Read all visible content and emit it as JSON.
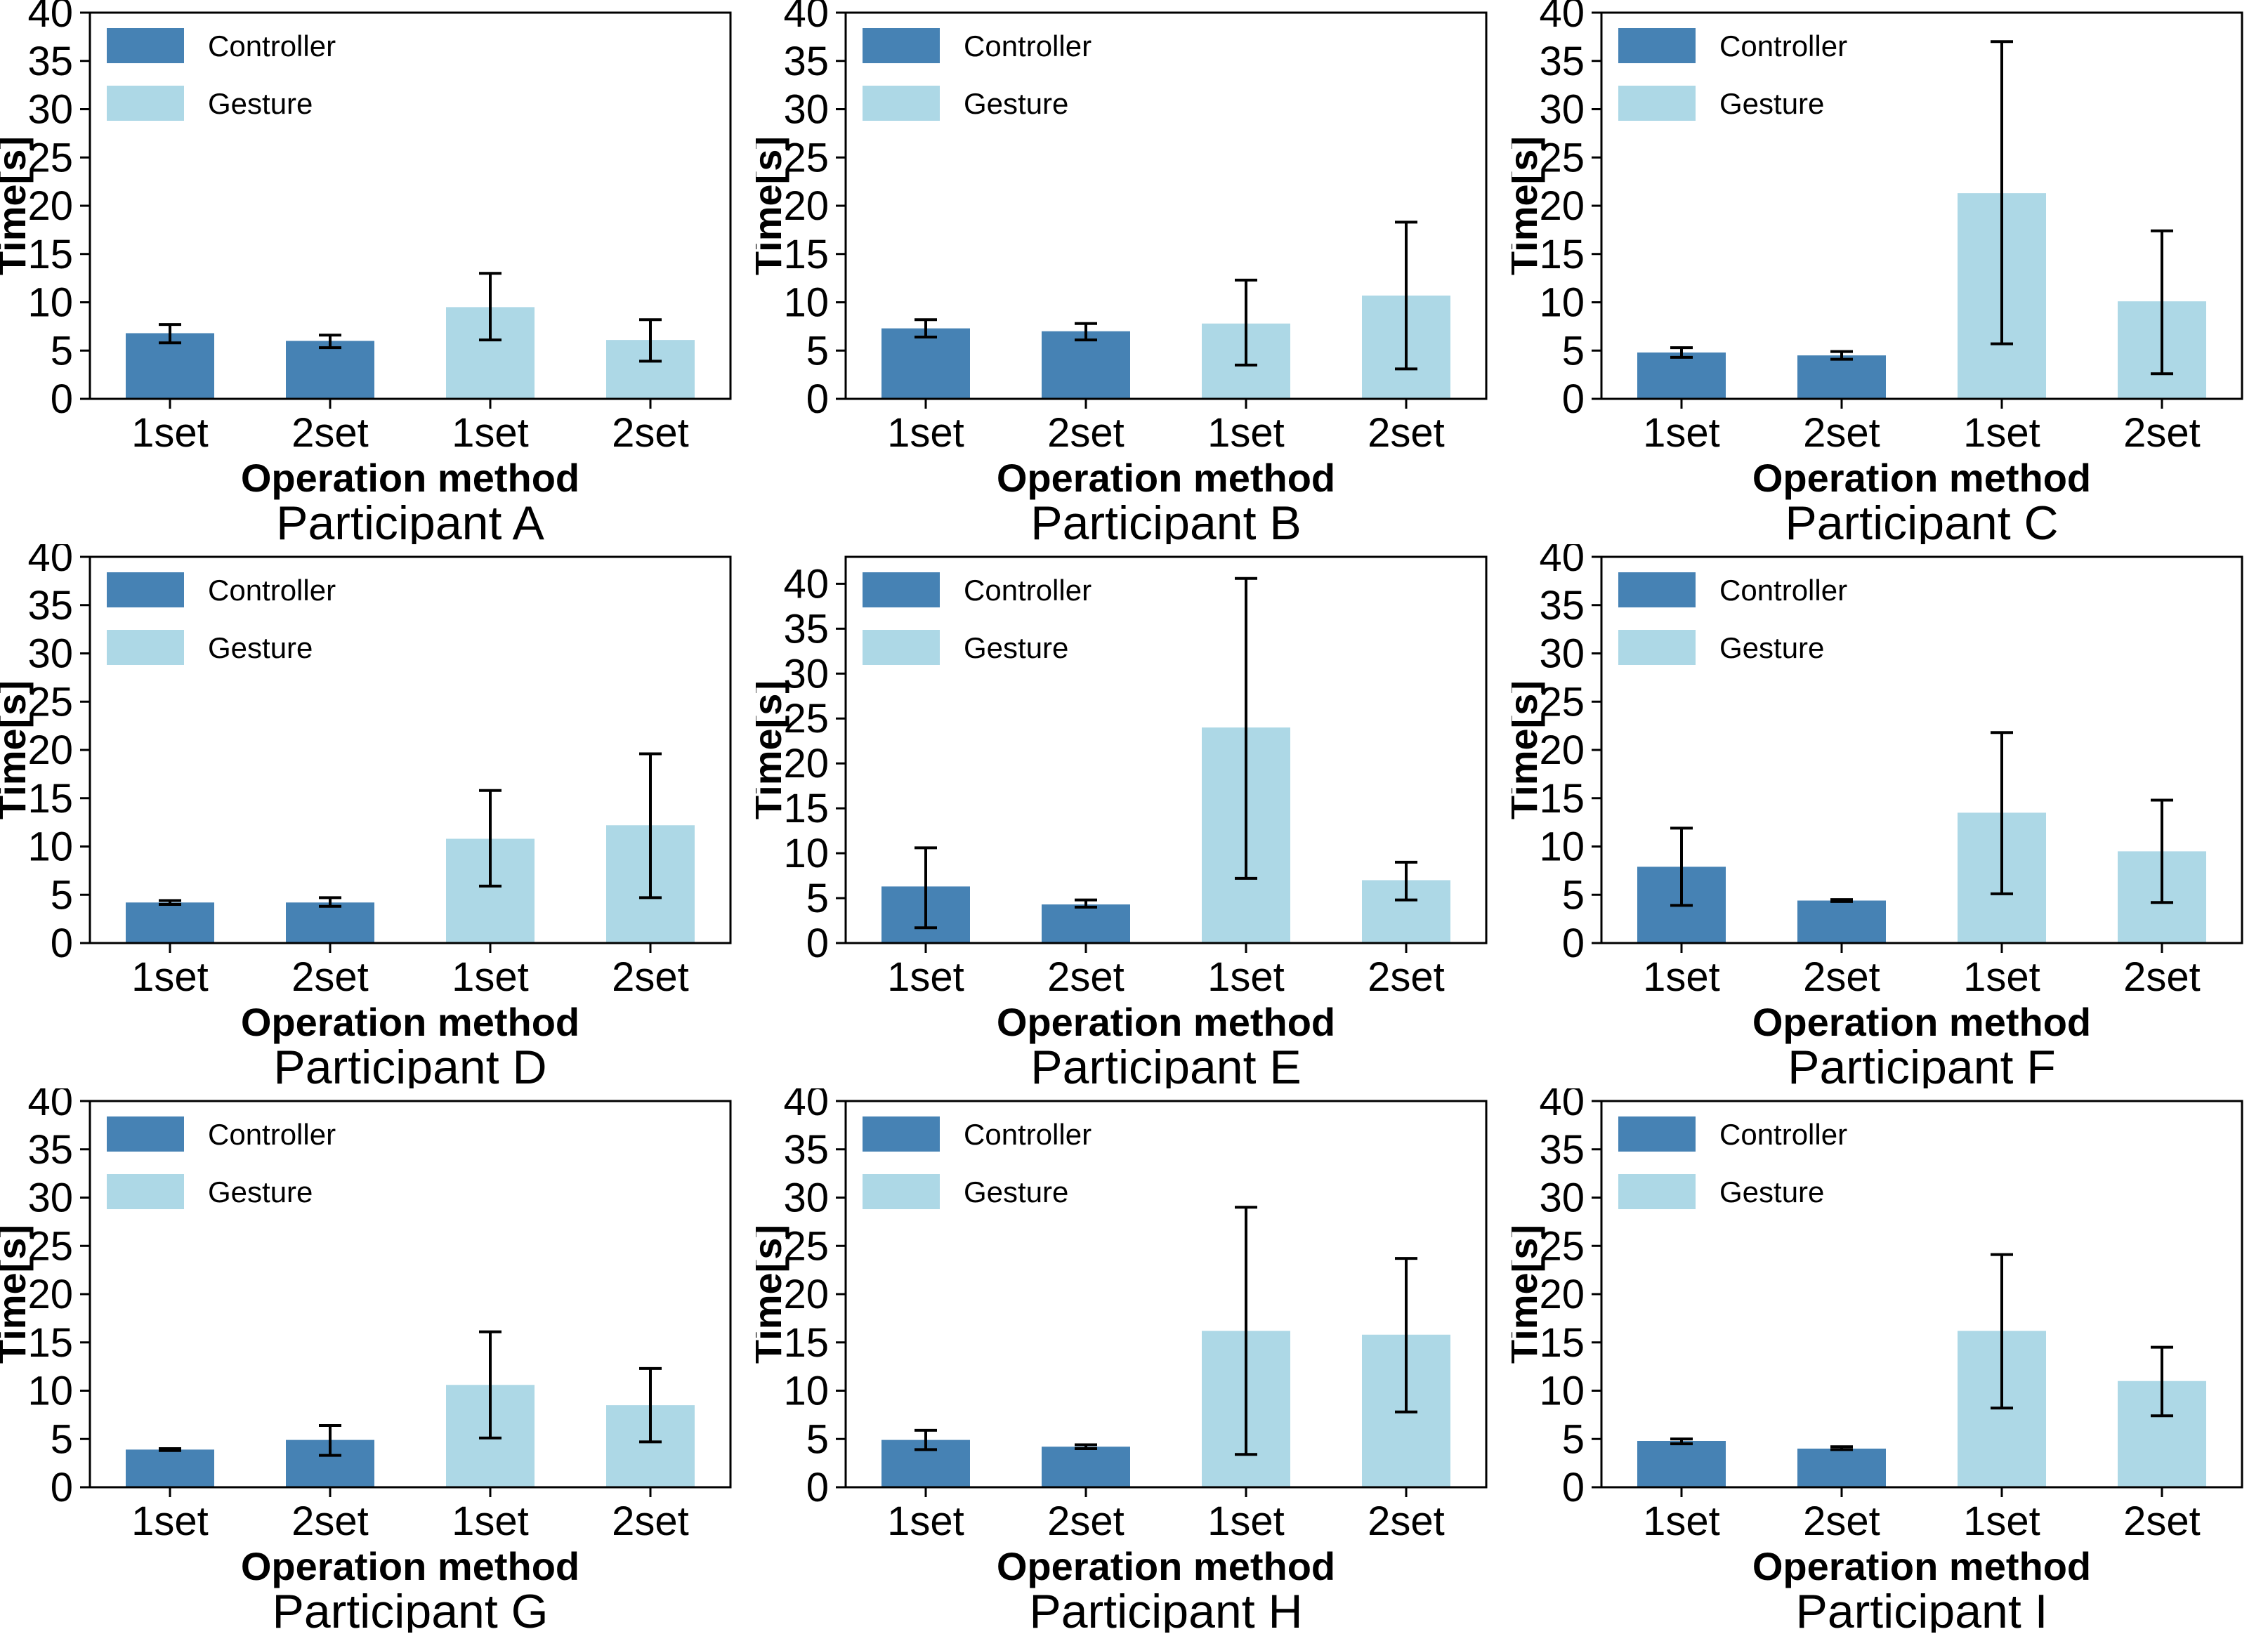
{
  "figure": {
    "background": "#ffffff",
    "rows": 3,
    "cols": 3
  },
  "chart_data": [
    {
      "type": "bar",
      "title": "Participant A",
      "xlabel": "Operation method",
      "ylabel": "Time[s]",
      "ylim": [
        0,
        40
      ],
      "yticks": [
        0,
        5,
        10,
        15,
        20,
        25,
        30,
        35,
        40
      ],
      "categories": [
        "1set",
        "2set",
        "1set",
        "2set"
      ],
      "legend": [
        {
          "label": "Controller",
          "color": "#4682B4"
        },
        {
          "label": "Gesture",
          "color": "#ADD8E6"
        }
      ],
      "bars": [
        {
          "series": "Controller",
          "label": "1set",
          "value": 6.8,
          "err_lo": 5.8,
          "err_hi": 7.7
        },
        {
          "series": "Controller",
          "label": "2set",
          "value": 6.0,
          "err_lo": 5.3,
          "err_hi": 6.6
        },
        {
          "series": "Gesture",
          "label": "1set",
          "value": 9.5,
          "err_lo": 6.1,
          "err_hi": 13.0
        },
        {
          "series": "Gesture",
          "label": "2set",
          "value": 6.1,
          "err_lo": 3.9,
          "err_hi": 8.2
        }
      ]
    },
    {
      "type": "bar",
      "title": "Participant B",
      "xlabel": "Operation method",
      "ylabel": "Time[s]",
      "ylim": [
        0,
        40
      ],
      "yticks": [
        0,
        5,
        10,
        15,
        20,
        25,
        30,
        35,
        40
      ],
      "categories": [
        "1set",
        "2set",
        "1set",
        "2set"
      ],
      "legend": [
        {
          "label": "Controller",
          "color": "#4682B4"
        },
        {
          "label": "Gesture",
          "color": "#ADD8E6"
        }
      ],
      "bars": [
        {
          "series": "Controller",
          "label": "1set",
          "value": 7.3,
          "err_lo": 6.4,
          "err_hi": 8.2
        },
        {
          "series": "Controller",
          "label": "2set",
          "value": 7.0,
          "err_lo": 6.1,
          "err_hi": 7.8
        },
        {
          "series": "Gesture",
          "label": "1set",
          "value": 7.8,
          "err_lo": 3.5,
          "err_hi": 12.3
        },
        {
          "series": "Gesture",
          "label": "2set",
          "value": 10.7,
          "err_lo": 3.1,
          "err_hi": 18.3
        }
      ]
    },
    {
      "type": "bar",
      "title": "Participant C",
      "xlabel": "Operation method",
      "ylabel": "Time[s]",
      "ylim": [
        0,
        40
      ],
      "yticks": [
        0,
        5,
        10,
        15,
        20,
        25,
        30,
        35,
        40
      ],
      "categories": [
        "1set",
        "2set",
        "1set",
        "2set"
      ],
      "legend": [
        {
          "label": "Controller",
          "color": "#4682B4"
        },
        {
          "label": "Gesture",
          "color": "#ADD8E6"
        }
      ],
      "bars": [
        {
          "series": "Controller",
          "label": "1set",
          "value": 4.8,
          "err_lo": 4.3,
          "err_hi": 5.3
        },
        {
          "series": "Controller",
          "label": "2set",
          "value": 4.5,
          "err_lo": 4.1,
          "err_hi": 4.9
        },
        {
          "series": "Gesture",
          "label": "1set",
          "value": 21.3,
          "err_lo": 5.7,
          "err_hi": 37.0
        },
        {
          "series": "Gesture",
          "label": "2set",
          "value": 10.1,
          "err_lo": 2.6,
          "err_hi": 17.4
        }
      ]
    },
    {
      "type": "bar",
      "title": "Participant D",
      "xlabel": "Operation method",
      "ylabel": "Time[s]",
      "ylim": [
        0,
        40
      ],
      "yticks": [
        0,
        5,
        10,
        15,
        20,
        25,
        30,
        35,
        40
      ],
      "categories": [
        "1set",
        "2set",
        "1set",
        "2set"
      ],
      "legend": [
        {
          "label": "Controller",
          "color": "#4682B4"
        },
        {
          "label": "Gesture",
          "color": "#ADD8E6"
        }
      ],
      "bars": [
        {
          "series": "Controller",
          "label": "1set",
          "value": 4.2,
          "err_lo": 4.0,
          "err_hi": 4.4
        },
        {
          "series": "Controller",
          "label": "2set",
          "value": 4.2,
          "err_lo": 3.8,
          "err_hi": 4.7
        },
        {
          "series": "Gesture",
          "label": "1set",
          "value": 10.8,
          "err_lo": 5.9,
          "err_hi": 15.8
        },
        {
          "series": "Gesture",
          "label": "2set",
          "value": 12.2,
          "err_lo": 4.7,
          "err_hi": 19.6
        }
      ]
    },
    {
      "type": "bar",
      "title": "Participant E",
      "xlabel": "Operation method",
      "ylabel": "Time[s]",
      "ylim": [
        0,
        43
      ],
      "yticks": [
        0,
        5,
        10,
        15,
        20,
        25,
        30,
        35,
        40
      ],
      "categories": [
        "1set",
        "2set",
        "1set",
        "2set"
      ],
      "legend": [
        {
          "label": "Controller",
          "color": "#4682B4"
        },
        {
          "label": "Gesture",
          "color": "#ADD8E6"
        }
      ],
      "bars": [
        {
          "series": "Controller",
          "label": "1set",
          "value": 6.3,
          "err_lo": 1.7,
          "err_hi": 10.6
        },
        {
          "series": "Controller",
          "label": "2set",
          "value": 4.3,
          "err_lo": 4.0,
          "err_hi": 4.8
        },
        {
          "series": "Gesture",
          "label": "1set",
          "value": 24.0,
          "err_lo": 7.2,
          "err_hi": 40.6
        },
        {
          "series": "Gesture",
          "label": "2set",
          "value": 7.0,
          "err_lo": 4.8,
          "err_hi": 9.0
        }
      ]
    },
    {
      "type": "bar",
      "title": "Participant F",
      "xlabel": "Operation method",
      "ylabel": "Time[s]",
      "ylim": [
        0,
        40
      ],
      "yticks": [
        0,
        5,
        10,
        15,
        20,
        25,
        30,
        35,
        40
      ],
      "categories": [
        "1set",
        "2set",
        "1set",
        "2set"
      ],
      "legend": [
        {
          "label": "Controller",
          "color": "#4682B4"
        },
        {
          "label": "Gesture",
          "color": "#ADD8E6"
        }
      ],
      "bars": [
        {
          "series": "Controller",
          "label": "1set",
          "value": 7.9,
          "err_lo": 3.9,
          "err_hi": 11.9
        },
        {
          "series": "Controller",
          "label": "2set",
          "value": 4.4,
          "err_lo": 4.3,
          "err_hi": 4.5
        },
        {
          "series": "Gesture",
          "label": "1set",
          "value": 13.5,
          "err_lo": 5.1,
          "err_hi": 21.8
        },
        {
          "series": "Gesture",
          "label": "2set",
          "value": 9.5,
          "err_lo": 4.2,
          "err_hi": 14.8
        }
      ]
    },
    {
      "type": "bar",
      "title": "Participant G",
      "xlabel": "Operation method",
      "ylabel": "Time[s]",
      "ylim": [
        0,
        40
      ],
      "yticks": [
        0,
        5,
        10,
        15,
        20,
        25,
        30,
        35,
        40
      ],
      "categories": [
        "1set",
        "2set",
        "1set",
        "2set"
      ],
      "legend": [
        {
          "label": "Controller",
          "color": "#4682B4"
        },
        {
          "label": "Gesture",
          "color": "#ADD8E6"
        }
      ],
      "bars": [
        {
          "series": "Controller",
          "label": "1set",
          "value": 3.9,
          "err_lo": 3.8,
          "err_hi": 4.0
        },
        {
          "series": "Controller",
          "label": "2set",
          "value": 4.9,
          "err_lo": 3.3,
          "err_hi": 6.4
        },
        {
          "series": "Gesture",
          "label": "1set",
          "value": 10.6,
          "err_lo": 5.1,
          "err_hi": 16.1
        },
        {
          "series": "Gesture",
          "label": "2set",
          "value": 8.5,
          "err_lo": 4.7,
          "err_hi": 12.3
        }
      ]
    },
    {
      "type": "bar",
      "title": "Participant H",
      "xlabel": "Operation method",
      "ylabel": "Time[s]",
      "ylim": [
        0,
        40
      ],
      "yticks": [
        0,
        5,
        10,
        15,
        20,
        25,
        30,
        35,
        40
      ],
      "categories": [
        "1set",
        "2set",
        "1set",
        "2set"
      ],
      "legend": [
        {
          "label": "Controller",
          "color": "#4682B4"
        },
        {
          "label": "Gesture",
          "color": "#ADD8E6"
        }
      ],
      "bars": [
        {
          "series": "Controller",
          "label": "1set",
          "value": 4.9,
          "err_lo": 3.9,
          "err_hi": 5.9
        },
        {
          "series": "Controller",
          "label": "2set",
          "value": 4.2,
          "err_lo": 4.0,
          "err_hi": 4.4
        },
        {
          "series": "Gesture",
          "label": "1set",
          "value": 16.2,
          "err_lo": 3.4,
          "err_hi": 29.0
        },
        {
          "series": "Gesture",
          "label": "2set",
          "value": 15.8,
          "err_lo": 7.8,
          "err_hi": 23.7
        }
      ]
    },
    {
      "type": "bar",
      "title": "Participant I",
      "xlabel": "Operation method",
      "ylabel": "Time[s]",
      "ylim": [
        0,
        40
      ],
      "yticks": [
        0,
        5,
        10,
        15,
        20,
        25,
        30,
        35,
        40
      ],
      "categories": [
        "1set",
        "2set",
        "1set",
        "2set"
      ],
      "legend": [
        {
          "label": "Controller",
          "color": "#4682B4"
        },
        {
          "label": "Gesture",
          "color": "#ADD8E6"
        }
      ],
      "bars": [
        {
          "series": "Controller",
          "label": "1set",
          "value": 4.8,
          "err_lo": 4.5,
          "err_hi": 5.0
        },
        {
          "series": "Controller",
          "label": "2set",
          "value": 4.0,
          "err_lo": 3.9,
          "err_hi": 4.2
        },
        {
          "series": "Gesture",
          "label": "1set",
          "value": 16.2,
          "err_lo": 8.2,
          "err_hi": 24.1
        },
        {
          "series": "Gesture",
          "label": "2set",
          "value": 11.0,
          "err_lo": 7.4,
          "err_hi": 14.5
        }
      ]
    }
  ]
}
